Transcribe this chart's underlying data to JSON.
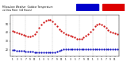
{
  "title_left": "Milwaukee Weather  Outdoor Temperature",
  "title_right": "vs Dew Point\n(24 Hours)",
  "background_color": "#ffffff",
  "temp_color": "#cc0000",
  "dew_color": "#0000bb",
  "legend_temp_color": "#dd0000",
  "legend_dew_color": "#0000cc",
  "hours": [
    0,
    1,
    2,
    3,
    4,
    5,
    6,
    7,
    8,
    9,
    10,
    11,
    12,
    13,
    14,
    15,
    16,
    17,
    18,
    19,
    20,
    21,
    22,
    23,
    24,
    25,
    26,
    27,
    28,
    29,
    30,
    31,
    32,
    33,
    34,
    35,
    36,
    37,
    38,
    39,
    40,
    41,
    42,
    43,
    44,
    45,
    46,
    47
  ],
  "temp_values": [
    42,
    41,
    40,
    39,
    38,
    37,
    36,
    35,
    35,
    36,
    38,
    41,
    45,
    49,
    52,
    54,
    55,
    55,
    53,
    50,
    47,
    44,
    42,
    40,
    38,
    37,
    36,
    35,
    34,
    33,
    33,
    33,
    34,
    36,
    38,
    41,
    44,
    47,
    49,
    50,
    49,
    47,
    45,
    43,
    41,
    40,
    39,
    38
  ],
  "dew_values": [
    20,
    20,
    19,
    19,
    19,
    19,
    18,
    18,
    18,
    18,
    17,
    17,
    17,
    17,
    17,
    17,
    17,
    17,
    17,
    17,
    18,
    19,
    20,
    21,
    21,
    21,
    21,
    21,
    21,
    21,
    21,
    21,
    21,
    21,
    21,
    21,
    21,
    21,
    21,
    21,
    21,
    21,
    21,
    21,
    21,
    21,
    21,
    21
  ],
  "ylim": [
    12,
    60
  ],
  "ytick_values": [
    20,
    30,
    40,
    50
  ],
  "ytick_labels": [
    "20",
    "30",
    "40",
    "50"
  ],
  "grid_x": [
    0,
    6,
    12,
    18,
    24,
    30,
    36,
    42,
    48
  ],
  "xlim": [
    -1,
    48
  ],
  "xtick_positions": [
    0,
    2,
    4,
    6,
    8,
    10,
    12,
    14,
    16,
    18,
    20,
    22,
    24,
    26,
    28,
    30,
    32,
    34,
    36,
    38,
    40,
    42,
    44,
    46
  ],
  "xtick_labels": [
    "1",
    "3",
    "5",
    "7",
    "9",
    "11",
    "1",
    "3",
    "5",
    "7",
    "9",
    "11",
    "1",
    "3",
    "5",
    "7",
    "9",
    "11",
    "1",
    "3",
    "5",
    "7",
    "9",
    "11"
  ]
}
